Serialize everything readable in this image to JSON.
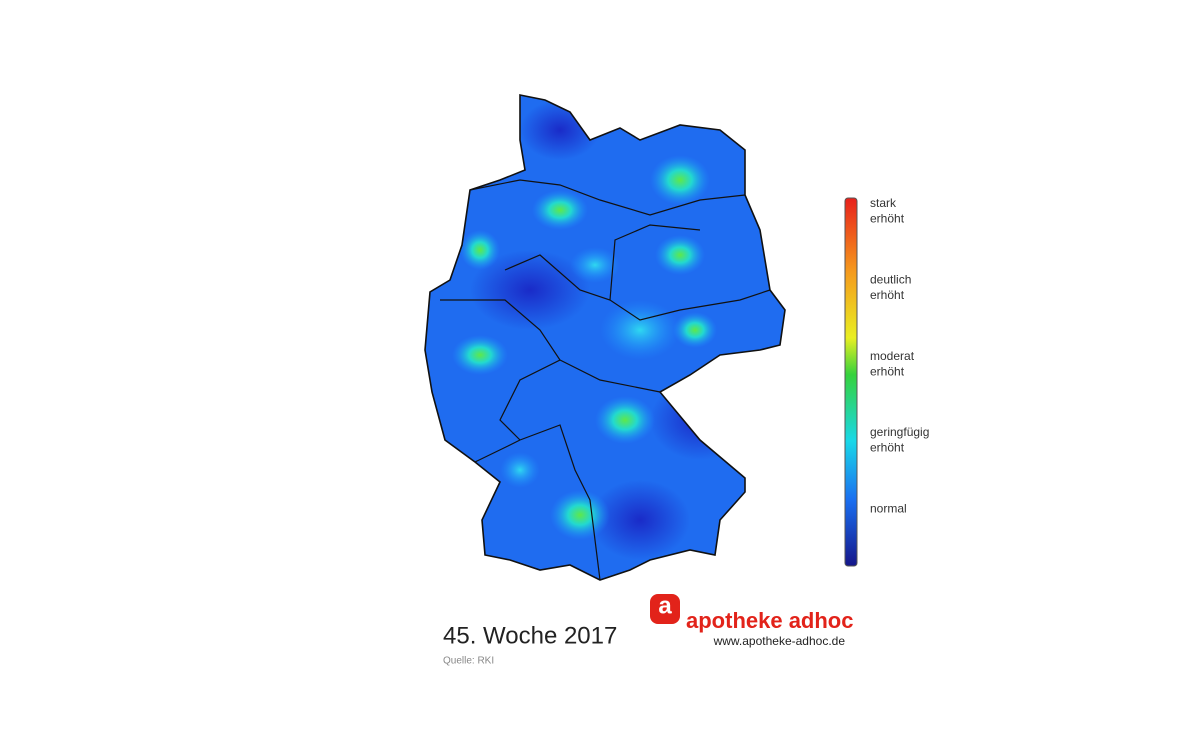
{
  "map": {
    "title": "45. Woche 2017",
    "source": "Quelle: RKI",
    "legend": {
      "levels": [
        {
          "lines": [
            "stark",
            "erhöht"
          ]
        },
        {
          "lines": [
            "deutlich",
            "erhöht"
          ]
        },
        {
          "lines": [
            "moderat",
            "erhöht"
          ]
        },
        {
          "lines": [
            "geringfügig",
            "erhöht"
          ]
        },
        {
          "lines": [
            "normal"
          ]
        }
      ]
    },
    "brand": {
      "icon": "a",
      "name": "apotheke adhoc",
      "url": "www.apotheke-adhoc.de"
    }
  }
}
